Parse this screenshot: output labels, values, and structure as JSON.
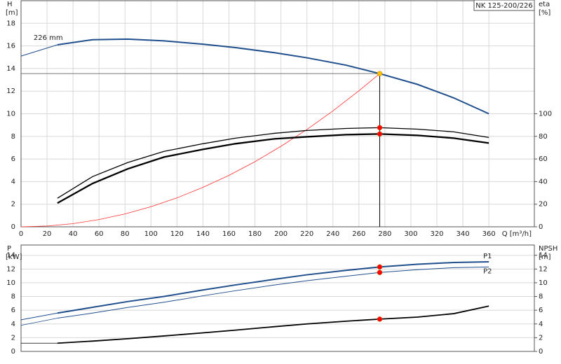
{
  "chart_data": [
    {
      "type": "line",
      "title": "NK 125-200/226",
      "ylabel": "H",
      "yunit": "[m]",
      "y2label": "eta",
      "y2unit": "[%]",
      "xlabel": "Q [m³/h]",
      "xlim": [
        0,
        395
      ],
      "xticks": [
        0,
        20,
        40,
        60,
        80,
        100,
        120,
        140,
        160,
        180,
        200,
        220,
        240,
        260,
        280,
        300,
        320,
        340,
        360
      ],
      "ylim": [
        0,
        20
      ],
      "yticks": [
        0,
        2,
        4,
        6,
        8,
        10,
        12,
        14,
        16,
        18
      ],
      "y2lim": [
        0,
        200
      ],
      "y2ticks": [
        0,
        20,
        40,
        60,
        80,
        100
      ],
      "grid": true,
      "series": [
        {
          "x": [
            0,
            28
          ],
          "values": [
            15.1,
            16.1
          ],
          "color": "#1f4e8c",
          "width": 1
        },
        {
          "name": "226 mm",
          "x": [
            28,
            55,
            82,
            110,
            140,
            165,
            195,
            220,
            250,
            276,
            305,
            333,
            360
          ],
          "values": [
            16.1,
            16.55,
            16.6,
            16.45,
            16.15,
            15.85,
            15.4,
            14.95,
            14.3,
            13.55,
            12.6,
            11.4,
            10.0
          ],
          "color": "#1f4e8c",
          "width": 2
        },
        {
          "x": [
            0,
            20,
            40,
            60,
            80,
            100,
            120,
            140,
            160,
            180,
            200,
            220,
            240,
            260,
            276
          ],
          "values": [
            0,
            0.07,
            0.28,
            0.64,
            1.14,
            1.78,
            2.56,
            3.49,
            4.55,
            5.76,
            7.12,
            8.61,
            10.25,
            12.03,
            13.55
          ],
          "color": "#ff3030",
          "width": 0.8
        },
        {
          "x": [
            28,
            55,
            82,
            110,
            140,
            165,
            195,
            220,
            250,
            276,
            305,
            333,
            360
          ],
          "values": [
            25.3,
            44.4,
            56.8,
            66.7,
            73.5,
            78.4,
            82.7,
            85.2,
            87.0,
            87.7,
            86.4,
            84.0,
            79.0
          ],
          "color": "#000000",
          "width": 1.3,
          "axis": "y2"
        },
        {
          "x": [
            28,
            55,
            82,
            110,
            140,
            165,
            195,
            220,
            250,
            276,
            305,
            333,
            360
          ],
          "values": [
            21.0,
            38.3,
            51.2,
            61.7,
            68.5,
            73.5,
            77.8,
            79.6,
            81.5,
            82.1,
            80.9,
            78.4,
            74.1
          ],
          "color": "#000000",
          "width": 2.3,
          "axis": "y2"
        }
      ],
      "points": [
        {
          "x": 276,
          "value": 13.55,
          "color": "#ffc000",
          "guides": true
        },
        {
          "x": 276,
          "value": 87.7,
          "color": "#ff0000",
          "axis": "y2"
        },
        {
          "x": 276,
          "value": 82.1,
          "color": "#ff0000",
          "axis": "y2"
        }
      ]
    },
    {
      "type": "line",
      "ylabel": "P",
      "yunit": "[kW]",
      "y2label": "NPSH",
      "y2unit": "[m]",
      "xlim": [
        0,
        395
      ],
      "ylim": [
        0,
        15.5
      ],
      "yticks": [
        0,
        2,
        4,
        6,
        8,
        10,
        12,
        14
      ],
      "y2lim": [
        0,
        15.5
      ],
      "y2ticks": [
        0,
        2,
        4,
        6,
        8,
        10,
        12,
        14
      ],
      "grid": true,
      "series": [
        {
          "x": [
            0,
            28
          ],
          "values": [
            4.6,
            5.58
          ],
          "color": "#1f4e8c",
          "width": 1
        },
        {
          "name": "P1",
          "x": [
            28,
            55,
            82,
            110,
            140,
            165,
            195,
            220,
            250,
            276,
            305,
            333,
            360
          ],
          "values": [
            5.58,
            6.42,
            7.26,
            8.0,
            8.95,
            9.68,
            10.5,
            11.16,
            11.8,
            12.3,
            12.7,
            12.95,
            13.05
          ],
          "color": "#1f4e8c",
          "width": 2
        },
        {
          "x": [
            0,
            28
          ],
          "values": [
            3.8,
            4.84
          ],
          "color": "#1f4e8c",
          "width": 0.8
        },
        {
          "name": "P2",
          "x": [
            28,
            55,
            82,
            110,
            140,
            165,
            195,
            220,
            250,
            276,
            305,
            333,
            360
          ],
          "values": [
            4.84,
            5.58,
            6.4,
            7.16,
            8.1,
            8.84,
            9.68,
            10.3,
            10.95,
            11.5,
            11.9,
            12.2,
            12.3
          ],
          "color": "#1f4e8c",
          "width": 1
        },
        {
          "x": [
            0,
            28
          ],
          "values": [
            1.2,
            1.2
          ],
          "color": "#000000",
          "width": 0.8,
          "axis": "y2"
        },
        {
          "x": [
            28,
            55,
            82,
            110,
            140,
            165,
            195,
            220,
            250,
            276,
            305,
            333,
            360
          ],
          "values": [
            1.2,
            1.5,
            1.85,
            2.25,
            2.7,
            3.1,
            3.6,
            4.0,
            4.4,
            4.7,
            5.0,
            5.5,
            6.6
          ],
          "color": "#000000",
          "width": 1.8,
          "axis": "y2"
        }
      ],
      "points": [
        {
          "x": 276,
          "value": 12.3,
          "color": "#ff0000"
        },
        {
          "x": 276,
          "value": 11.5,
          "color": "#ff0000"
        },
        {
          "x": 276,
          "value": 4.7,
          "color": "#ff0000",
          "axis": "y2"
        }
      ]
    }
  ]
}
